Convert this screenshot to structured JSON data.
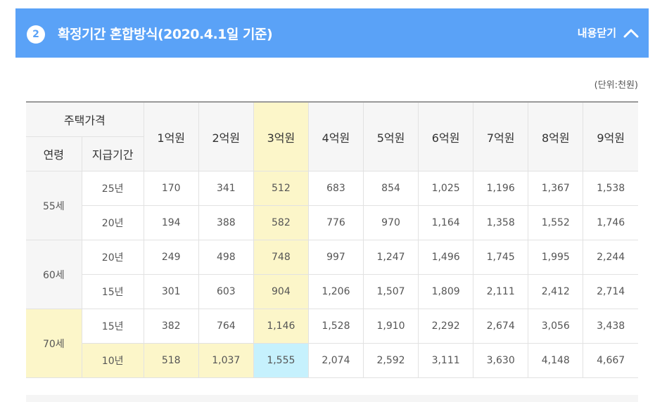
{
  "header": {
    "badge": "2",
    "title": "확정기간 혼합방식(2020.4.1일 기준)",
    "toggle_label": "내용닫기",
    "background": "#5aa2f7"
  },
  "unit_note": "(단위:천원)",
  "table": {
    "corner_top": "주택가격",
    "corner_age": "연령",
    "corner_period": "지급기간",
    "columns": [
      "1억원",
      "2억원",
      "3억원",
      "4억원",
      "5억원",
      "6억원",
      "7억원",
      "8억원",
      "9억원"
    ],
    "highlight_column": "3억원",
    "highlight_color": "#fcf6c9",
    "selected_cell_color": "#c6f1fd",
    "groups": [
      {
        "age": "55세",
        "rows": [
          {
            "period": "25년",
            "values": [
              "170",
              "341",
              "512",
              "683",
              "854",
              "1,025",
              "1,196",
              "1,367",
              "1,538"
            ]
          },
          {
            "period": "20년",
            "values": [
              "194",
              "388",
              "582",
              "776",
              "970",
              "1,164",
              "1,358",
              "1,552",
              "1,746"
            ]
          }
        ]
      },
      {
        "age": "60세",
        "rows": [
          {
            "period": "20년",
            "values": [
              "249",
              "498",
              "748",
              "997",
              "1,247",
              "1,496",
              "1,745",
              "1,995",
              "2,244"
            ]
          },
          {
            "period": "15년",
            "values": [
              "301",
              "603",
              "904",
              "1,206",
              "1,507",
              "1,809",
              "2,111",
              "2,412",
              "2,714"
            ]
          }
        ]
      },
      {
        "age": "70세",
        "rows": [
          {
            "period": "15년",
            "values": [
              "382",
              "764",
              "1,146",
              "1,528",
              "1,910",
              "2,292",
              "2,674",
              "3,056",
              "3,438"
            ]
          },
          {
            "period": "10년",
            "values": [
              "518",
              "1,037",
              "1,555",
              "2,074",
              "2,592",
              "3,111",
              "3,630",
              "4,148",
              "4,667"
            ]
          }
        ]
      }
    ]
  }
}
